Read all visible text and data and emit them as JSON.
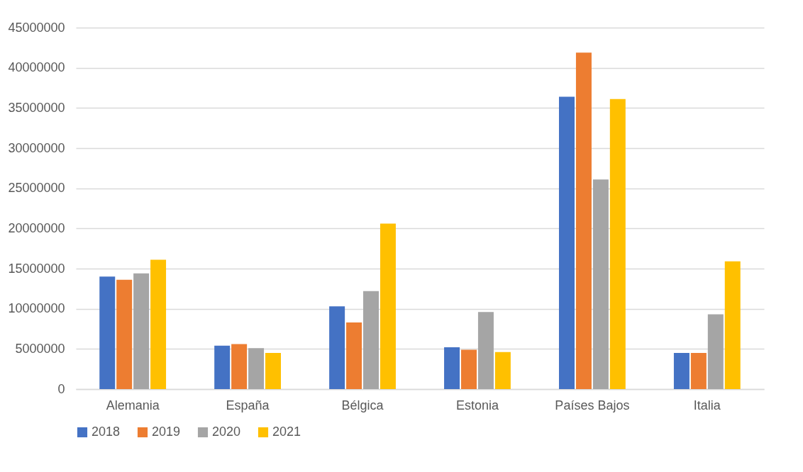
{
  "chart_data": {
    "type": "bar",
    "categories": [
      "Alemania",
      "España",
      "Bélgica",
      "Estonia",
      "Países Bajos",
      "Italia"
    ],
    "series": [
      {
        "name": "2018",
        "color": "#4472c4",
        "values": [
          14000000,
          5400000,
          10300000,
          5200000,
          36400000,
          4500000
        ]
      },
      {
        "name": "2019",
        "color": "#ed7d31",
        "values": [
          13600000,
          5600000,
          8300000,
          4900000,
          41900000,
          4500000
        ]
      },
      {
        "name": "2020",
        "color": "#a5a5a5",
        "values": [
          14400000,
          5100000,
          12200000,
          9600000,
          26100000,
          9300000
        ]
      },
      {
        "name": "2021",
        "color": "#ffc000",
        "values": [
          16100000,
          4500000,
          20600000,
          4600000,
          36100000,
          15900000
        ]
      }
    ],
    "ylim": [
      0,
      45000000
    ],
    "yticks": [
      0,
      5000000,
      10000000,
      15000000,
      20000000,
      25000000,
      30000000,
      35000000,
      40000000,
      45000000
    ],
    "grid": "y",
    "legend": "bottom"
  }
}
